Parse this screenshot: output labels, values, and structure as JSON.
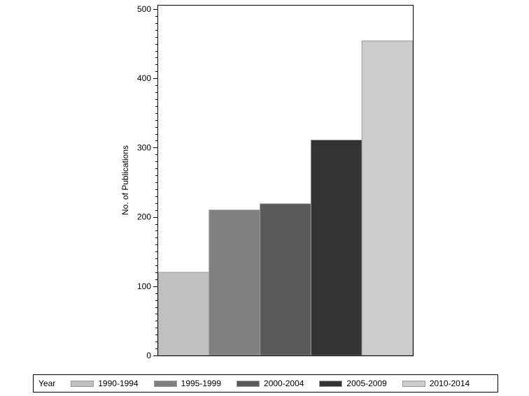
{
  "chart_data": {
    "type": "bar",
    "title": "",
    "xlabel": "",
    "ylabel": "No. of Publications",
    "ylim": [
      0,
      500
    ],
    "yticks": [
      0,
      100,
      200,
      300,
      400,
      500
    ],
    "grid": false,
    "legend_position": "bottom",
    "legend_title": "Year",
    "categories": [
      "1990-1994",
      "1995-1999",
      "2000-2004",
      "2005-2009",
      "2010-2014"
    ],
    "values": [
      120,
      210,
      219,
      311,
      454
    ],
    "colors": [
      "#c0c0c0",
      "#808080",
      "#5a5a5a",
      "#333333",
      "#cccccc"
    ]
  }
}
